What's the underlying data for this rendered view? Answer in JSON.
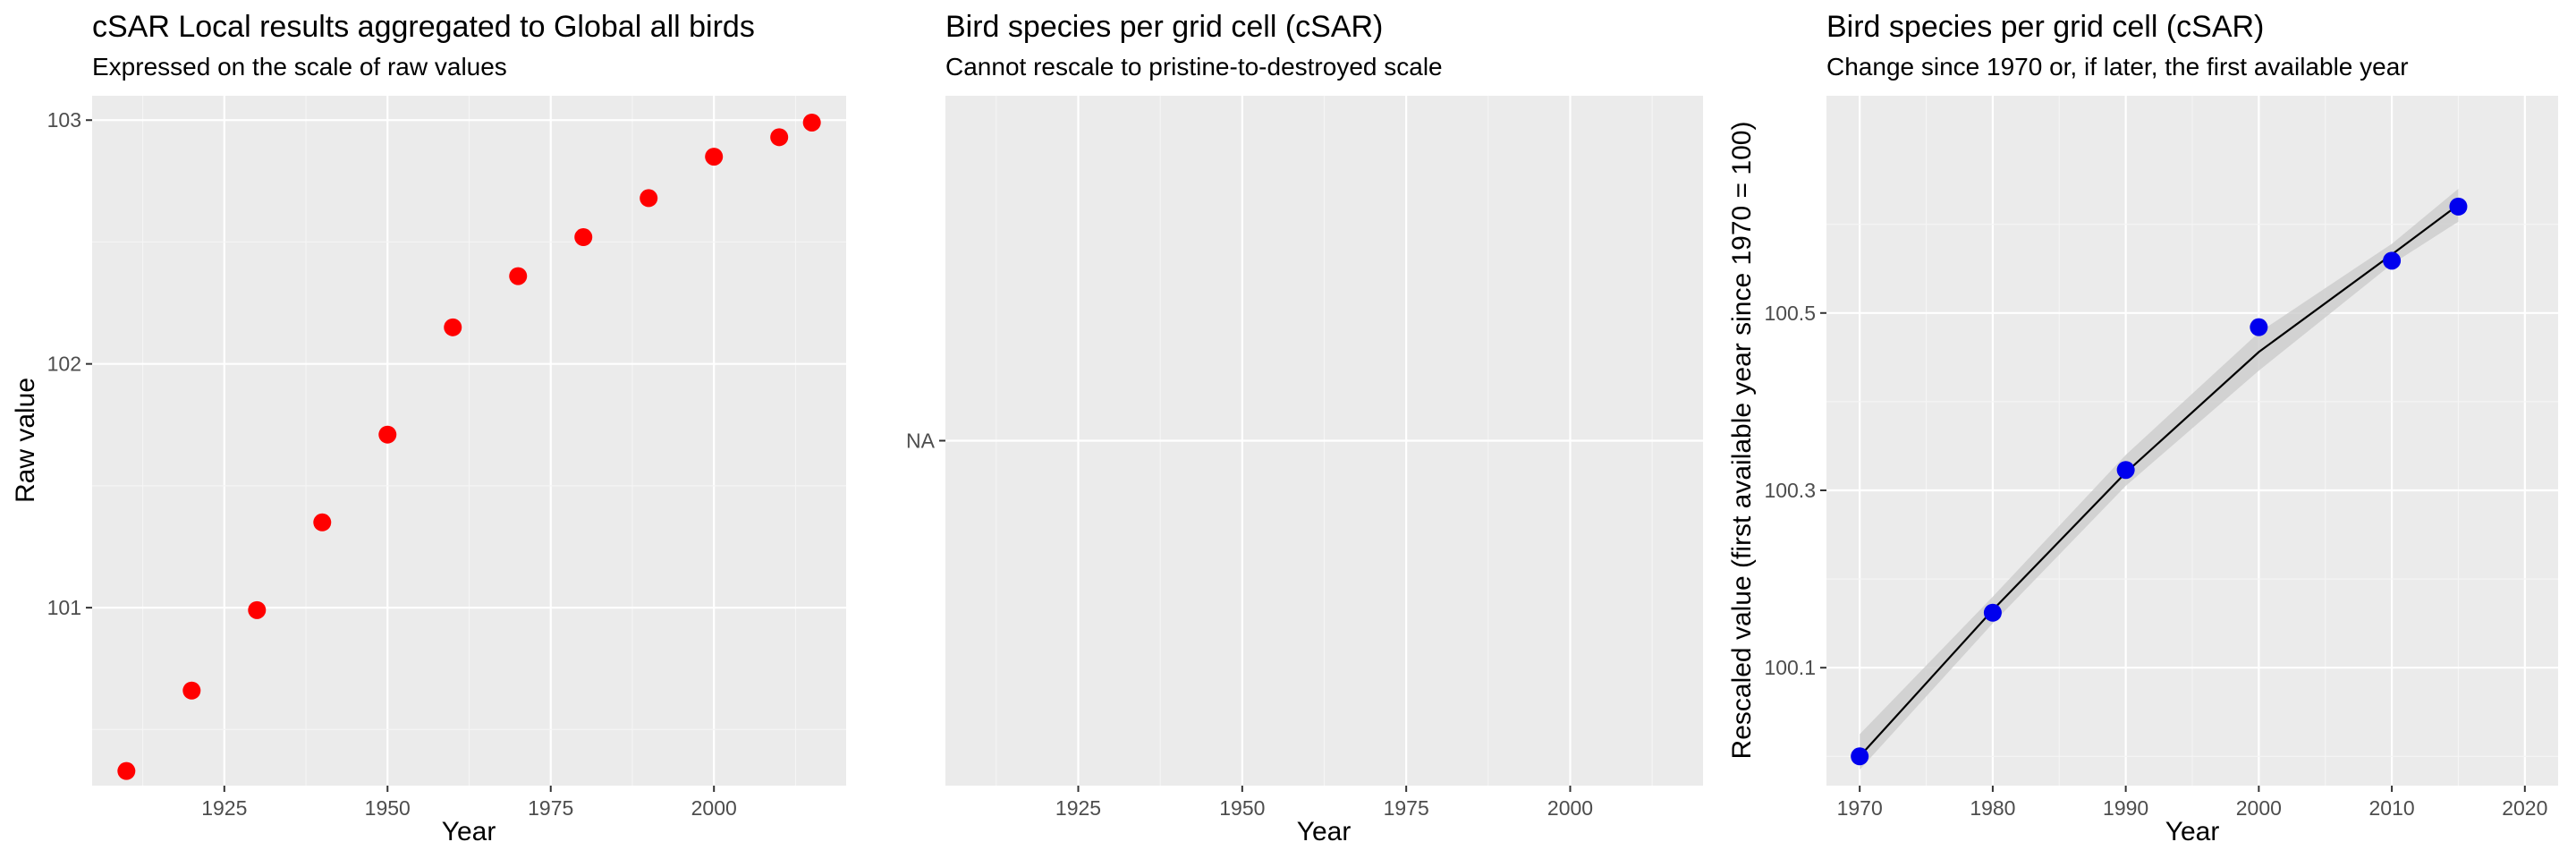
{
  "colors": {
    "panel_background": "#ebebeb",
    "grid_major": "#ffffff",
    "grid_minor": "#f5f5f5",
    "tick": "#333333",
    "point_red": "#ff0000",
    "point_blue": "#0000ee",
    "ribbon": "#cccccc",
    "line": "#000000"
  },
  "chart_data": [
    {
      "type": "scatter",
      "title": "cSAR Local results aggregated to Global all birds",
      "subtitle": "Expressed on the scale of raw values",
      "xlabel": "Year",
      "ylabel": "Raw value",
      "xlim": [
        1904.75,
        2020.25
      ],
      "ylim": [
        100.27,
        103.1
      ],
      "x_ticks": [
        1925,
        1950,
        1975,
        2000
      ],
      "x_tick_labels": [
        "1925",
        "1950",
        "1975",
        "2000"
      ],
      "y_ticks": [
        101,
        102,
        103
      ],
      "y_tick_labels": [
        "101",
        "102",
        "103"
      ],
      "grid": true,
      "point_color": "point_red",
      "series": [
        {
          "x": [
            1910,
            1920,
            1930,
            1940,
            1950,
            1960,
            1970,
            1980,
            1990,
            2000,
            2010,
            2015
          ],
          "y": [
            100.33,
            100.66,
            100.99,
            101.35,
            101.71,
            102.15,
            102.36,
            102.52,
            102.68,
            102.85,
            102.93,
            102.99
          ]
        }
      ]
    },
    {
      "type": "scatter",
      "title": "Bird species per grid cell (cSAR)",
      "subtitle": "Cannot rescale to pristine-to-destroyed scale",
      "xlabel": "Year",
      "ylabel": "",
      "xlim": [
        1904.75,
        2020.25
      ],
      "x_ticks": [
        1925,
        1950,
        1975,
        2000
      ],
      "x_tick_labels": [
        "1925",
        "1950",
        "1975",
        "2000"
      ],
      "y_tick_labels": [
        "NA"
      ],
      "grid": true,
      "series": []
    },
    {
      "type": "line",
      "title": "Bird species per grid cell (cSAR)",
      "subtitle": "Change since 1970 or, if later, the first available year",
      "xlabel": "Year",
      "ylabel": "Rescaled value (first available year since 1970 = 100)",
      "xlim": [
        1967.5,
        2022.5
      ],
      "ylim": [
        99.967,
        100.745
      ],
      "x_ticks": [
        1970,
        1980,
        1990,
        2000,
        2010,
        2020
      ],
      "x_tick_labels": [
        "1970",
        "1980",
        "1990",
        "2000",
        "2010",
        "2020"
      ],
      "y_ticks": [
        100.1,
        100.3,
        100.5
      ],
      "y_tick_labels": [
        "100.1",
        "100.3",
        "100.5"
      ],
      "grid": true,
      "point_color": "point_blue",
      "series": [
        {
          "x": [
            1970,
            1980,
            1990,
            2000,
            2010,
            2015
          ],
          "y": [
            100.0,
            100.162,
            100.323,
            100.484,
            100.559,
            100.62
          ],
          "fit": [
            100.0,
            100.165,
            100.32,
            100.456,
            100.566,
            100.622
          ],
          "ribbon_low": [
            99.985,
            100.15,
            100.305,
            100.435,
            100.555,
            100.603
          ],
          "ribbon_high": [
            100.025,
            100.18,
            100.34,
            100.478,
            100.578,
            100.64
          ]
        }
      ]
    }
  ]
}
